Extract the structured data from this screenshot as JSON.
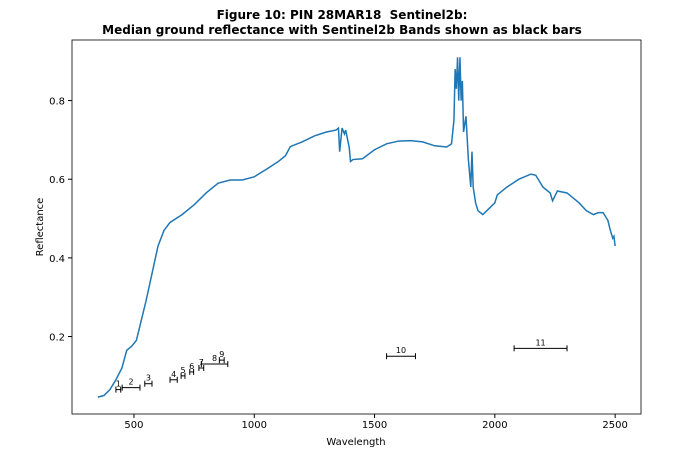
{
  "chart_data": {
    "type": "line",
    "title": [
      "Figure 10: PIN 28MAR18  Sentinel2b:",
      "Median ground reflectance with Sentinel2b Bands shown as black bars"
    ],
    "x_label": "Wavelength",
    "y_label": "Reflectance",
    "xlim": [
      242.5,
      2607.5
    ],
    "ylim": [
      0.003,
      0.954
    ],
    "xticks": [
      500,
      1000,
      1500,
      2000,
      2500
    ],
    "yticks": [
      0.2,
      0.4,
      0.6,
      0.8
    ],
    "series": [
      {
        "color": "#1f77b4",
        "x": [
          350,
          375,
          400,
          425,
          450,
          470,
          490,
          510,
          530,
          550,
          575,
          600,
          625,
          650,
          700,
          750,
          800,
          850,
          900,
          950,
          1000,
          1020,
          1050,
          1100,
          1130,
          1150,
          1200,
          1250,
          1300,
          1340,
          1350,
          1355,
          1365,
          1375,
          1380,
          1395,
          1400,
          1410,
          1450,
          1500,
          1550,
          1600,
          1650,
          1700,
          1750,
          1800,
          1820,
          1830,
          1835,
          1840,
          1845,
          1850,
          1855,
          1860,
          1865,
          1870,
          1880,
          1890,
          1900,
          1905,
          1910,
          1920,
          1930,
          1950,
          2000,
          2010,
          2050,
          2100,
          2150,
          2170,
          2200,
          2230,
          2240,
          2260,
          2300,
          2350,
          2380,
          2410,
          2430,
          2450,
          2470,
          2480,
          2490,
          2495,
          2500
        ],
        "values": [
          0.046,
          0.05,
          0.065,
          0.09,
          0.12,
          0.165,
          0.175,
          0.19,
          0.24,
          0.29,
          0.36,
          0.43,
          0.47,
          0.49,
          0.51,
          0.535,
          0.565,
          0.59,
          0.598,
          0.598,
          0.606,
          0.614,
          0.625,
          0.645,
          0.66,
          0.683,
          0.695,
          0.71,
          0.72,
          0.725,
          0.73,
          0.67,
          0.73,
          0.715,
          0.725,
          0.68,
          0.645,
          0.65,
          0.652,
          0.675,
          0.69,
          0.697,
          0.698,
          0.695,
          0.685,
          0.682,
          0.69,
          0.75,
          0.88,
          0.83,
          0.91,
          0.8,
          0.91,
          0.8,
          0.85,
          0.72,
          0.76,
          0.65,
          0.58,
          0.67,
          0.58,
          0.54,
          0.52,
          0.51,
          0.54,
          0.56,
          0.58,
          0.6,
          0.613,
          0.61,
          0.58,
          0.565,
          0.545,
          0.57,
          0.565,
          0.54,
          0.52,
          0.51,
          0.515,
          0.515,
          0.495,
          0.47,
          0.45,
          0.455,
          0.43
        ]
      }
    ],
    "bands": {
      "color": "#000000",
      "labels": [
        "1",
        "2",
        "3",
        "4",
        "5",
        "6",
        "7",
        "8",
        "9",
        "10",
        "11"
      ],
      "centers": [
        435,
        488,
        560,
        665,
        704,
        740,
        780,
        835,
        865,
        1610,
        2190
      ],
      "half_widths": [
        10,
        37,
        15,
        15,
        8,
        8,
        10,
        55,
        10,
        60,
        110
      ],
      "values": [
        0.065,
        0.07,
        0.08,
        0.09,
        0.1,
        0.11,
        0.12,
        0.13,
        0.14,
        0.15,
        0.17
      ]
    }
  }
}
